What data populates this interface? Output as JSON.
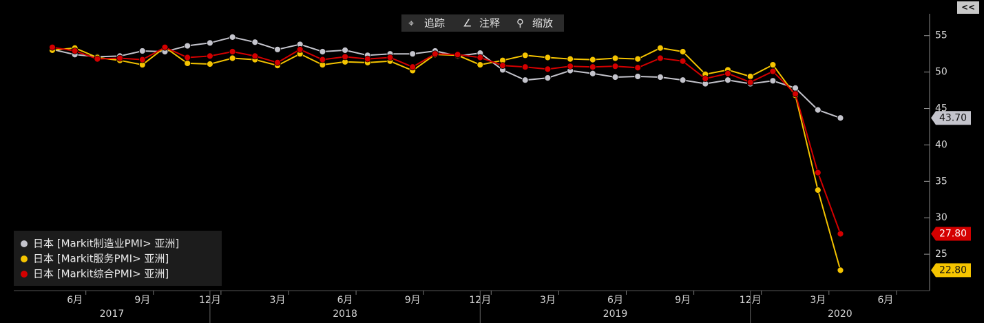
{
  "toolbar": [
    "追踪",
    "注释",
    "缩放"
  ],
  "collapse": "<<",
  "chart_data": {
    "type": "line",
    "categories": [
      null,
      "6月",
      null,
      null,
      "9月",
      null,
      null,
      "12月",
      null,
      null,
      "3月",
      null,
      null,
      "6月",
      null,
      null,
      "9月",
      null,
      null,
      "12月",
      null,
      null,
      "3月",
      null,
      null,
      "6月",
      null,
      null,
      "9月",
      null,
      null,
      "12月",
      null,
      null,
      "3月",
      null,
      null,
      "6月"
    ],
    "year_labels": [
      "2017",
      "2018",
      "2019",
      "2020"
    ],
    "ylim": [
      20,
      58
    ],
    "yticks": [
      25,
      30,
      35,
      40,
      45,
      50,
      55
    ],
    "series": [
      {
        "name": "日本 [Markit制造业PMI> 亚洲]",
        "color": "#c4c4cc",
        "last_value_label": "43.70",
        "values": [
          53.1,
          52.4,
          52.1,
          52.2,
          52.9,
          52.8,
          53.6,
          54.0,
          54.8,
          54.1,
          53.1,
          53.8,
          52.8,
          53.0,
          52.3,
          52.5,
          52.5,
          52.9,
          52.2,
          52.6,
          50.3,
          48.9,
          49.2,
          50.2,
          49.8,
          49.3,
          49.4,
          49.3,
          48.9,
          48.4,
          48.9,
          48.4,
          48.8,
          47.8,
          44.8,
          43.7,
          null,
          null
        ]
      },
      {
        "name": "日本 [Markit服务PMI> 亚洲]",
        "color": "#f5c400",
        "last_value_label": "22.80",
        "values": [
          53.0,
          53.3,
          52.0,
          51.6,
          51.0,
          53.4,
          51.2,
          51.1,
          51.9,
          51.7,
          50.9,
          52.5,
          51.0,
          51.4,
          51.3,
          51.5,
          50.2,
          52.4,
          52.3,
          51.0,
          51.6,
          52.3,
          52.0,
          51.8,
          51.7,
          51.9,
          51.8,
          53.3,
          52.8,
          49.7,
          50.3,
          49.4,
          51.0,
          46.8,
          33.8,
          22.8,
          null,
          null
        ]
      },
      {
        "name": "日本 [Markit综合PMI> 亚洲]",
        "color": "#d40000",
        "last_value_label": "27.80",
        "values": [
          53.4,
          52.9,
          51.8,
          51.9,
          51.7,
          53.4,
          52.0,
          52.2,
          52.8,
          52.2,
          51.3,
          53.1,
          51.7,
          52.1,
          51.8,
          52.0,
          50.7,
          52.5,
          52.4,
          52.0,
          50.9,
          50.7,
          50.4,
          50.8,
          50.7,
          50.8,
          50.6,
          51.9,
          51.5,
          49.1,
          49.8,
          48.6,
          50.1,
          47.0,
          36.2,
          27.8,
          null,
          null
        ]
      }
    ]
  }
}
